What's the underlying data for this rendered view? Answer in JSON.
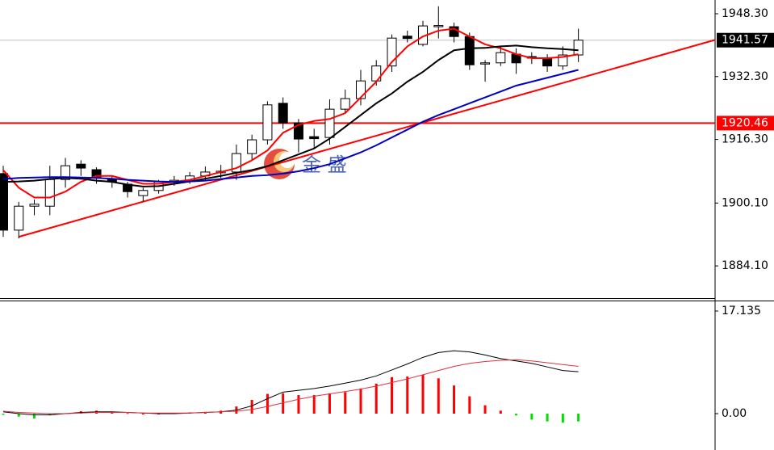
{
  "watermark": "金 盛",
  "chart_data": [
    {
      "type": "candlestick",
      "ylim": [
        1876.1,
        1951.8
      ],
      "yticks": [
        {
          "value": 1884.1,
          "label": "1884.10"
        },
        {
          "value": 1900.1,
          "label": "1900.10"
        },
        {
          "value": 1916.3,
          "label": "1916.30"
        },
        {
          "value": 1932.3,
          "label": "1932.30"
        },
        {
          "value": 1948.3,
          "label": "1948.30"
        }
      ],
      "up_color": "#ffffff",
      "down_color": "#000000",
      "open": [
        1907.6,
        1893.2,
        1899.3,
        1899.3,
        1906.1,
        1910,
        1908.6,
        1906.1,
        1904.9,
        1902,
        1903.3,
        1905.4,
        1905.6,
        1907,
        1907.8,
        1908,
        1912.7,
        1916.2,
        1925.5,
        1920.5,
        1917,
        1916.8,
        1924,
        1926.7,
        1931.2,
        1935,
        1942.6,
        1940.5,
        1945,
        1945,
        1942.5,
        1935.5,
        1935.8,
        1938,
        1937.4,
        1937,
        1935,
        1937.8
      ],
      "high": [
        1909.6,
        1900.4,
        1901,
        1909.6,
        1911.6,
        1911,
        1909.2,
        1907,
        1905.5,
        1904,
        1906,
        1907,
        1908,
        1909.4,
        1909.8,
        1915,
        1917.5,
        1926,
        1927,
        1921.5,
        1919,
        1926.5,
        1929,
        1934,
        1936.5,
        1943,
        1944,
        1946.5,
        1950.2,
        1946,
        1943.5,
        1936.5,
        1940,
        1939.5,
        1938.5,
        1938,
        1940,
        1944.5
      ],
      "low": [
        1891.5,
        1891.1,
        1897,
        1897,
        1904,
        1907,
        1905,
        1904,
        1901.5,
        1900.5,
        1902.5,
        1904.5,
        1905,
        1905.9,
        1906.5,
        1906,
        1911,
        1915,
        1919,
        1913,
        1914,
        1915,
        1923,
        1925,
        1930,
        1933.5,
        1941,
        1940,
        1942,
        1941,
        1934,
        1931,
        1935,
        1933,
        1935.5,
        1933.5,
        1934,
        1936
      ],
      "close": [
        1893.2,
        1899.3,
        1899.8,
        1906.1,
        1909.6,
        1909,
        1906.5,
        1905.5,
        1903,
        1903.3,
        1905.5,
        1905.9,
        1907,
        1908,
        1908.2,
        1912.7,
        1916.2,
        1925.1,
        1920.5,
        1916.4,
        1916.5,
        1924,
        1926.7,
        1931.2,
        1935,
        1942.1,
        1942,
        1945.2,
        1945.3,
        1942.5,
        1935.3,
        1935.8,
        1938.4,
        1935.8,
        1937,
        1935,
        1937.8,
        1941.57
      ],
      "lines": [
        {
          "color": "#ff0000",
          "values": [
            1908.5,
            1904,
            1901.5,
            1901.5,
            1903,
            1905.5,
            1907,
            1907,
            1906,
            1905,
            1905,
            1905.5,
            1906,
            1907,
            1908,
            1909,
            1911,
            1913.5,
            1918,
            1920,
            1921,
            1921.5,
            1923,
            1927,
            1931,
            1936,
            1940,
            1942.5,
            1944,
            1944.5,
            1942.5,
            1940.5,
            1939.5,
            1938,
            1937,
            1937,
            1937.3,
            1938
          ]
        },
        {
          "color": "#000000",
          "values": [
            1905.5,
            1905.6,
            1905.8,
            1906.2,
            1906.5,
            1906.3,
            1905.8,
            1905.5,
            1904.8,
            1904.3,
            1904.4,
            1905,
            1905.6,
            1906.3,
            1907,
            1907.8,
            1908.5,
            1909.5,
            1911,
            1912.5,
            1914,
            1916.5,
            1919.5,
            1922.5,
            1925.5,
            1928,
            1931,
            1933.5,
            1936.5,
            1939,
            1939.5,
            1939.6,
            1940,
            1940.2,
            1939.8,
            1939.5,
            1939.3,
            1939
          ]
        },
        {
          "color": "#0000c0",
          "values": [
            1906.2,
            1906.5,
            1906.6,
            1906.7,
            1906.7,
            1906.6,
            1906.5,
            1906.3,
            1906,
            1905.8,
            1905.6,
            1905.5,
            1905.6,
            1905.8,
            1906.2,
            1906.6,
            1907,
            1907.2,
            1907.6,
            1908.2,
            1909,
            1910,
            1911.5,
            1913,
            1914.8,
            1916.8,
            1918.8,
            1920.8,
            1922.5,
            1924,
            1925.5,
            1927,
            1928.5,
            1930,
            1931,
            1932,
            1933,
            1934
          ]
        }
      ],
      "trendline": {
        "color": "#ff0000",
        "values": [
          1891.5,
          1931.8
        ]
      },
      "level": {
        "value": 1920.46,
        "color": "#ff0000"
      },
      "last": {
        "value": 1941.57,
        "color": "#c0c0c0"
      }
    },
    {
      "type": "macd",
      "ylim": [
        -5.26,
        18.89
      ],
      "yticks": [
        {
          "value": 0,
          "label": "0.00"
        },
        17.135
      ],
      "up_color": "#ff0000",
      "down_color": "#00e000",
      "values": [
        -0.2,
        -0.5,
        -0.8,
        -0.3,
        0.1,
        0.4,
        0.5,
        0.3,
        0.1,
        0,
        0,
        0.1,
        0.2,
        0.3,
        0.5,
        1.2,
        2.3,
        3.3,
        3.4,
        3.1,
        3.1,
        3.4,
        3.6,
        4.2,
        5,
        6.1,
        6.2,
        6.5,
        5.9,
        4.7,
        2.9,
        1.4,
        0.5,
        -0.3,
        -1,
        -1.3,
        -1.5,
        -1.3
      ],
      "lines": [
        {
          "color": "#000000",
          "values": [
            0.3,
            0,
            -0.2,
            -0.2,
            0,
            0.2,
            0.3,
            0.3,
            0.2,
            0.1,
            0,
            0,
            0.1,
            0.2,
            0.3,
            0.6,
            1.3,
            2.5,
            3.6,
            3.9,
            4.2,
            4.6,
            5.1,
            5.6,
            6.3,
            7.3,
            8.3,
            9.4,
            10.2,
            10.5,
            10.3,
            9.8,
            9.2,
            8.8,
            8.4,
            7.8,
            7.2,
            7
          ]
        },
        {
          "color": "#e03040",
          "values": [
            0.4,
            0.2,
            0.1,
            0,
            0,
            0.1,
            0.2,
            0.2,
            0.2,
            0.1,
            0.1,
            0.1,
            0.1,
            0.2,
            0.3,
            0.4,
            0.7,
            1.2,
            1.8,
            2.4,
            2.9,
            3.3,
            3.7,
            4.1,
            4.6,
            5.2,
            5.8,
            6.5,
            7.2,
            7.9,
            8.4,
            8.7,
            8.9,
            9,
            8.8,
            8.5,
            8.2,
            7.9
          ]
        }
      ]
    }
  ]
}
